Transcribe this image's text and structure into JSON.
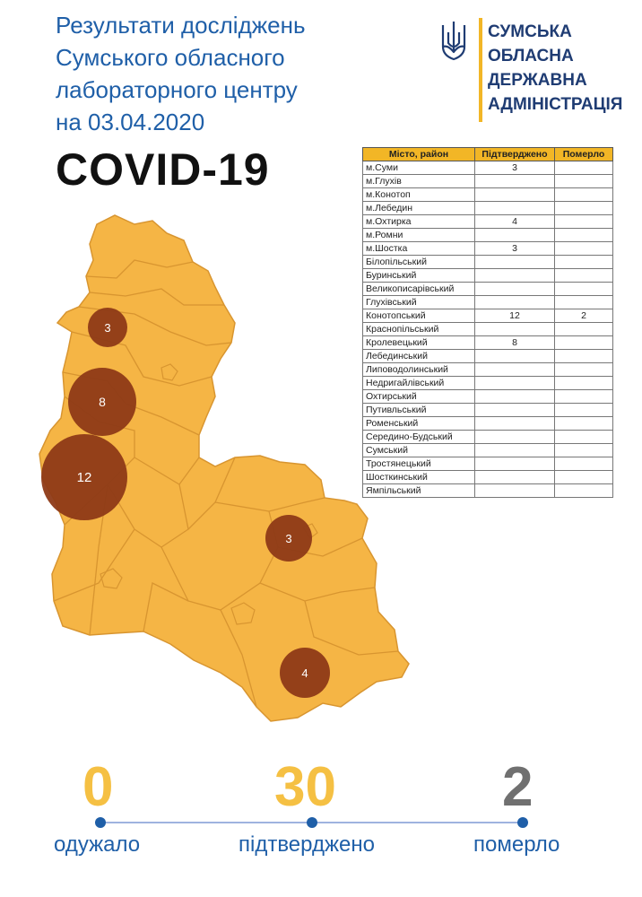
{
  "header": {
    "title_lines": [
      "Результати досліджень",
      "Сумського обласного",
      "лабораторного центру",
      "на 03.04.2020"
    ],
    "covid_label": "COVID-19"
  },
  "logo": {
    "lines": [
      "СУМСЬКА",
      "ОБЛАСНА",
      "ДЕРЖАВНА",
      "АДМІНІСТРАЦІЯ"
    ],
    "icon": "trident-icon",
    "accent": "#f2b626",
    "text_color": "#1f3c73"
  },
  "table": {
    "headers": [
      "Місто, район",
      "Підтверджено",
      "Померло"
    ],
    "rows": [
      {
        "name": "м.Суми",
        "confirmed": "3",
        "died": ""
      },
      {
        "name": "м.Глухів",
        "confirmed": "",
        "died": ""
      },
      {
        "name": "м.Конотоп",
        "confirmed": "",
        "died": ""
      },
      {
        "name": "м.Лебедин",
        "confirmed": "",
        "died": ""
      },
      {
        "name": "м.Охтирка",
        "confirmed": "4",
        "died": ""
      },
      {
        "name": "м.Ромни",
        "confirmed": "",
        "died": ""
      },
      {
        "name": "м.Шостка",
        "confirmed": "3",
        "died": ""
      },
      {
        "name": "Білопільський",
        "confirmed": "",
        "died": ""
      },
      {
        "name": "Буринський",
        "confirmed": "",
        "died": ""
      },
      {
        "name": "Великописарівський",
        "confirmed": "",
        "died": ""
      },
      {
        "name": "Глухівський",
        "confirmed": "",
        "died": ""
      },
      {
        "name": "Конотопський",
        "confirmed": "12",
        "died": "2"
      },
      {
        "name": "Краснопільський",
        "confirmed": "",
        "died": ""
      },
      {
        "name": "Кролевецький",
        "confirmed": "8",
        "died": ""
      },
      {
        "name": "Лебединський",
        "confirmed": "",
        "died": ""
      },
      {
        "name": "Липоводолинський",
        "confirmed": "",
        "died": ""
      },
      {
        "name": "Недригайлівський",
        "confirmed": "",
        "died": ""
      },
      {
        "name": "Охтирський",
        "confirmed": "",
        "died": ""
      },
      {
        "name": "Путивльський",
        "confirmed": "",
        "died": ""
      },
      {
        "name": "Роменський",
        "confirmed": "",
        "died": ""
      },
      {
        "name": "Середино-Будський",
        "confirmed": "",
        "died": ""
      },
      {
        "name": "Сумський",
        "confirmed": "",
        "died": ""
      },
      {
        "name": "Тростянецький",
        "confirmed": "",
        "died": ""
      },
      {
        "name": "Шосткинський",
        "confirmed": "",
        "died": ""
      },
      {
        "name": "Ямпільський",
        "confirmed": "",
        "died": ""
      }
    ]
  },
  "map": {
    "fill_color": "#f5b545",
    "border_color": "#d89530",
    "bubble_color": "#8e3a17",
    "bubbles": [
      {
        "label": "3"
      },
      {
        "label": "8"
      },
      {
        "label": "12"
      },
      {
        "label": "3"
      },
      {
        "label": "4"
      }
    ]
  },
  "stats": {
    "recovered": {
      "value": "0",
      "label": "одужало",
      "color": "#f5c043"
    },
    "confirmed": {
      "value": "30",
      "label": "підтверджено",
      "color": "#f5c043"
    },
    "died": {
      "value": "2",
      "label": "померло",
      "color": "#707070"
    },
    "line_color": "#9fb3df",
    "dot_color": "#1f5fa8"
  }
}
